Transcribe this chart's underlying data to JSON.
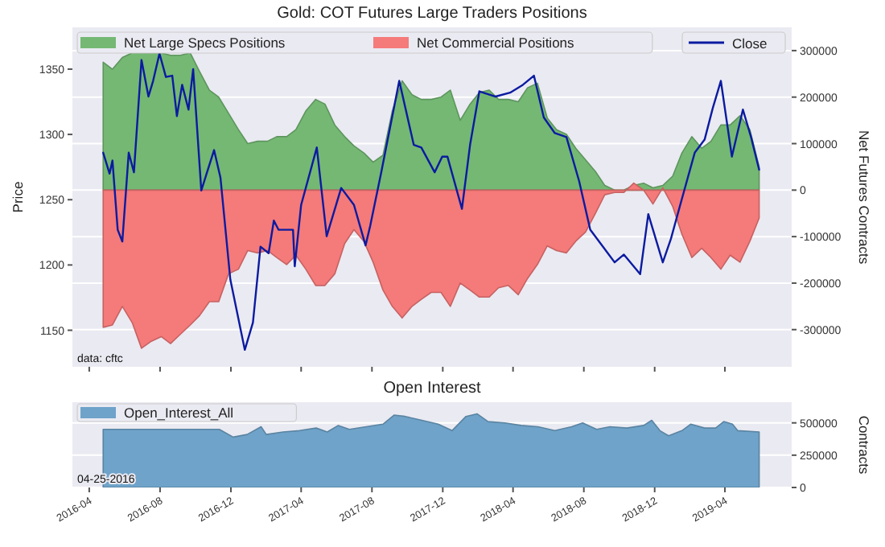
{
  "chart_data": [
    {
      "type": "area",
      "title": "Gold: COT Futures Large Traders Positions",
      "ylabel": "Price",
      "y2label": "Net Futures Contracts",
      "annotations": [
        "data: cftc"
      ],
      "xlim": [
        "2016-03-03",
        "2019-07-25"
      ],
      "xticks": [
        "2016-04",
        "2016-08",
        "2016-12",
        "2017-04",
        "2017-08",
        "2017-12",
        "2018-04",
        "2018-08",
        "2018-12",
        "2019-04"
      ],
      "ylim": [
        1122,
        1382
      ],
      "yticks": [
        1150,
        1200,
        1250,
        1300,
        1350
      ],
      "y2lim": [
        -380000,
        350000
      ],
      "y2ticks": [
        -300000,
        -200000,
        -100000,
        0,
        100000,
        200000,
        300000
      ],
      "tick_labels": "y",
      "grid": "y",
      "legend": "top",
      "series": [
        {
          "name": "Net Large Specs Positions",
          "type": "area",
          "axis": "y2",
          "color": "#74b874",
          "x": [
            "2016-04-25",
            "2016-05-11",
            "2016-05-28",
            "2016-06-14",
            "2016-06-30",
            "2016-07-17",
            "2016-08-03",
            "2016-08-19",
            "2016-09-05",
            "2016-09-22",
            "2016-10-08",
            "2016-10-25",
            "2016-11-10",
            "2016-11-27",
            "2016-12-14",
            "2016-12-30",
            "2017-01-16",
            "2017-02-02",
            "2017-02-18",
            "2017-03-07",
            "2017-03-23",
            "2017-04-09",
            "2017-04-26",
            "2017-05-12",
            "2017-05-29",
            "2017-06-15",
            "2017-07-01",
            "2017-07-18",
            "2017-08-03",
            "2017-08-20",
            "2017-09-05",
            "2017-09-22",
            "2017-10-09",
            "2017-10-25",
            "2017-11-11",
            "2017-11-28",
            "2017-12-14",
            "2017-12-31",
            "2018-01-17",
            "2018-02-02",
            "2018-02-19",
            "2018-03-07",
            "2018-03-24",
            "2018-04-10",
            "2018-04-26",
            "2018-05-13",
            "2018-05-30",
            "2018-06-15",
            "2018-07-02",
            "2018-07-18",
            "2018-08-04",
            "2018-08-21",
            "2018-09-06",
            "2018-09-23",
            "2018-10-09",
            "2018-10-26",
            "2018-11-12",
            "2018-11-28",
            "2018-12-15",
            "2019-01-01",
            "2019-01-17",
            "2019-02-03",
            "2019-02-20",
            "2019-03-08",
            "2019-03-25",
            "2019-04-10",
            "2019-04-27",
            "2019-05-14",
            "2019-05-30"
          ],
          "values": [
            275000,
            260000,
            285000,
            295000,
            295000,
            295000,
            295000,
            290000,
            290000,
            295000,
            255000,
            215000,
            200000,
            165000,
            130000,
            100000,
            105000,
            105000,
            115000,
            115000,
            130000,
            170000,
            195000,
            185000,
            140000,
            115000,
            95000,
            80000,
            60000,
            75000,
            170000,
            235000,
            205000,
            195000,
            195000,
            200000,
            215000,
            150000,
            185000,
            210000,
            215000,
            195000,
            195000,
            190000,
            220000,
            230000,
            155000,
            130000,
            120000,
            90000,
            65000,
            40000,
            10000,
            0,
            0,
            10000,
            15000,
            5000,
            10000,
            30000,
            80000,
            115000,
            90000,
            105000,
            140000,
            140000,
            160000,
            130000,
            50000
          ]
        },
        {
          "name": "Net Commercial Positions",
          "type": "area",
          "axis": "y2",
          "color": "#f57a7a",
          "x": [
            "2016-04-25",
            "2016-05-11",
            "2016-05-28",
            "2016-06-14",
            "2016-06-30",
            "2016-07-17",
            "2016-08-03",
            "2016-08-19",
            "2016-09-05",
            "2016-09-22",
            "2016-10-08",
            "2016-10-25",
            "2016-11-10",
            "2016-11-27",
            "2016-12-14",
            "2016-12-30",
            "2017-01-16",
            "2017-02-02",
            "2017-02-18",
            "2017-03-07",
            "2017-03-23",
            "2017-04-09",
            "2017-04-26",
            "2017-05-12",
            "2017-05-29",
            "2017-06-15",
            "2017-07-01",
            "2017-07-18",
            "2017-08-03",
            "2017-08-20",
            "2017-09-05",
            "2017-09-22",
            "2017-10-09",
            "2017-10-25",
            "2017-11-11",
            "2017-11-28",
            "2017-12-14",
            "2017-12-31",
            "2018-01-17",
            "2018-02-02",
            "2018-02-19",
            "2018-03-07",
            "2018-03-24",
            "2018-04-10",
            "2018-04-26",
            "2018-05-13",
            "2018-05-30",
            "2018-06-15",
            "2018-07-02",
            "2018-07-18",
            "2018-08-04",
            "2018-08-21",
            "2018-09-06",
            "2018-09-23",
            "2018-10-09",
            "2018-10-26",
            "2018-11-12",
            "2018-11-28",
            "2018-12-15",
            "2019-01-01",
            "2019-01-17",
            "2019-02-03",
            "2019-02-20",
            "2019-03-08",
            "2019-03-25",
            "2019-04-10",
            "2019-04-27",
            "2019-05-14",
            "2019-05-30"
          ],
          "values": [
            -295000,
            -290000,
            -250000,
            -285000,
            -340000,
            -325000,
            -315000,
            -330000,
            -310000,
            -290000,
            -270000,
            -240000,
            -240000,
            -180000,
            -170000,
            -130000,
            -135000,
            -130000,
            -145000,
            -160000,
            -140000,
            -170000,
            -205000,
            -205000,
            -180000,
            -115000,
            -85000,
            -110000,
            -155000,
            -215000,
            -250000,
            -275000,
            -250000,
            -235000,
            -220000,
            -220000,
            -250000,
            -200000,
            -215000,
            -230000,
            -230000,
            -210000,
            -205000,
            -225000,
            -190000,
            -160000,
            -120000,
            -130000,
            -135000,
            -110000,
            -90000,
            -50000,
            -10000,
            -5000,
            -5000,
            15000,
            0,
            -30000,
            5000,
            -35000,
            -95000,
            -145000,
            -125000,
            -145000,
            -170000,
            -140000,
            -155000,
            -110000,
            -60000
          ]
        },
        {
          "name": "Close",
          "type": "line",
          "axis": "y",
          "color": "#0b1ba0",
          "x": [
            "2016-04-25",
            "2016-05-06",
            "2016-05-11",
            "2016-05-20",
            "2016-05-28",
            "2016-06-08",
            "2016-06-17",
            "2016-06-30",
            "2016-07-12",
            "2016-07-20",
            "2016-07-31",
            "2016-08-11",
            "2016-08-22",
            "2016-08-30",
            "2016-09-08",
            "2016-09-19",
            "2016-09-27",
            "2016-10-11",
            "2016-11-02",
            "2016-11-13",
            "2016-11-30",
            "2016-12-25",
            "2017-01-08",
            "2017-01-21",
            "2017-02-04",
            "2017-02-13",
            "2017-02-21",
            "2017-03-18",
            "2017-03-21",
            "2017-04-01",
            "2017-04-28",
            "2017-05-15",
            "2017-06-09",
            "2017-07-01",
            "2017-07-21",
            "2017-07-29",
            "2017-08-17",
            "2017-09-17",
            "2017-10-12",
            "2017-10-25",
            "2017-11-17",
            "2017-11-30",
            "2017-12-09",
            "2018-01-03",
            "2018-01-17",
            "2018-02-02",
            "2018-03-02",
            "2018-03-27",
            "2018-04-18",
            "2018-05-07",
            "2018-05-24",
            "2018-06-12",
            "2018-07-02",
            "2018-07-24",
            "2018-08-12",
            "2018-09-03",
            "2018-09-23",
            "2018-10-09",
            "2018-11-06",
            "2018-11-20",
            "2018-12-15",
            "2018-12-29",
            "2019-01-14",
            "2019-02-08",
            "2019-02-25",
            "2019-03-11",
            "2019-03-25",
            "2019-04-13",
            "2019-05-02",
            "2019-05-16",
            "2019-05-30"
          ],
          "values": [
            1286,
            1270,
            1280,
            1227,
            1218,
            1286,
            1271,
            1357,
            1329,
            1341,
            1362,
            1344,
            1345,
            1314,
            1338,
            1319,
            1350,
            1257,
            1288,
            1267,
            1189,
            1135,
            1156,
            1214,
            1209,
            1234,
            1227,
            1227,
            1199,
            1246,
            1290,
            1222,
            1259,
            1246,
            1215,
            1230,
            1271,
            1341,
            1292,
            1290,
            1271,
            1283,
            1283,
            1243,
            1292,
            1333,
            1329,
            1332,
            1338,
            1345,
            1313,
            1301,
            1298,
            1264,
            1227,
            1214,
            1202,
            1208,
            1193,
            1239,
            1202,
            1220,
            1246,
            1286,
            1296,
            1320,
            1341,
            1283,
            1319,
            1298,
            1273
          ]
        }
      ]
    },
    {
      "type": "area",
      "title": "Open Interest",
      "y2label": "Contracts",
      "annotations": [
        "04-25-2016"
      ],
      "xlim": [
        "2016-03-03",
        "2019-07-25"
      ],
      "xticks": [
        "2016-04",
        "2016-08",
        "2016-12",
        "2017-04",
        "2017-08",
        "2017-12",
        "2018-04",
        "2018-08",
        "2018-12",
        "2019-04"
      ],
      "y2lim": [
        0,
        660000
      ],
      "y2ticks": [
        0,
        250000,
        500000
      ],
      "grid": "y",
      "legend": "top left",
      "series": [
        {
          "name": "Open_Interest_All",
          "type": "area",
          "axis": "y2",
          "color": "#6fa3c9",
          "x": [
            "2016-04-25",
            "2016-11-11",
            "2016-12-05",
            "2016-12-29",
            "2017-01-22",
            "2017-01-31",
            "2017-03-01",
            "2017-03-29",
            "2017-04-27",
            "2017-05-16",
            "2017-06-04",
            "2017-06-23",
            "2017-07-22",
            "2017-08-20",
            "2017-09-08",
            "2017-09-27",
            "2017-10-26",
            "2017-11-23",
            "2017-12-17",
            "2018-01-10",
            "2018-01-29",
            "2018-02-17",
            "2018-03-18",
            "2018-04-15",
            "2018-05-14",
            "2018-06-12",
            "2018-07-11",
            "2018-07-30",
            "2018-08-23",
            "2018-09-15",
            "2018-10-14",
            "2018-11-12",
            "2018-11-26",
            "2018-12-10",
            "2018-12-25",
            "2019-01-17",
            "2019-02-01",
            "2019-02-25",
            "2019-03-16",
            "2019-03-30",
            "2019-04-14",
            "2019-04-23",
            "2019-05-30"
          ],
          "values": [
            450000,
            450000,
            390000,
            410000,
            470000,
            410000,
            430000,
            440000,
            460000,
            430000,
            480000,
            450000,
            470000,
            490000,
            560000,
            550000,
            520000,
            490000,
            440000,
            550000,
            570000,
            510000,
            500000,
            480000,
            470000,
            440000,
            470000,
            500000,
            450000,
            470000,
            460000,
            480000,
            520000,
            440000,
            400000,
            440000,
            490000,
            460000,
            460000,
            510000,
            490000,
            440000,
            430000
          ]
        }
      ]
    }
  ]
}
